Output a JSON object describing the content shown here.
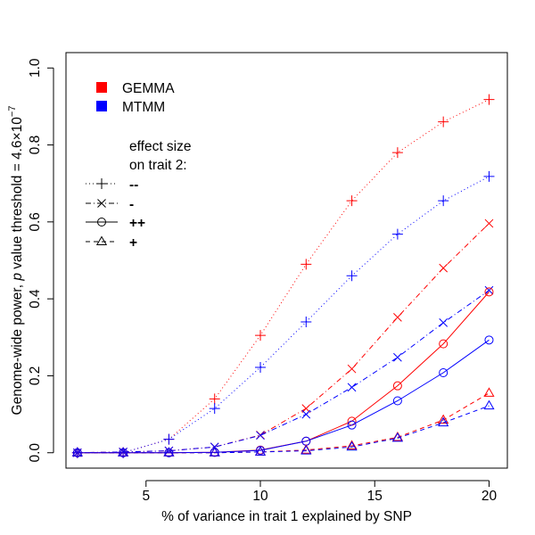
{
  "chart_data": {
    "type": "line",
    "xlabel": "% of variance in trait 1 explained by SNP",
    "ylabel_prefix": "Genome-wide power, ",
    "ylabel_p": "p",
    "ylabel_suffix": " value threshold = 4.6×10",
    "ylabel_exponent": "−7",
    "xlim": [
      1.5,
      20.8
    ],
    "ylim": [
      -0.04,
      1.04
    ],
    "xticks": [
      5,
      10,
      15,
      20
    ],
    "yticks": [
      0.0,
      0.2,
      0.4,
      0.6,
      0.8,
      1.0
    ],
    "ytick_labels": [
      "0.0",
      "0.2",
      "0.4",
      "0.6",
      "0.8",
      "1.0"
    ],
    "x": [
      2,
      4,
      6,
      8,
      10,
      12,
      14,
      16,
      18,
      20
    ],
    "method_legend": [
      {
        "name": "GEMMA",
        "color": "#ff0000"
      },
      {
        "name": "MTMM",
        "color": "#0000ff"
      }
    ],
    "effect_legend_title_1": "effect size",
    "effect_legend_title_2": "on trait 2:",
    "effect_legend": [
      {
        "label": "--",
        "marker": "plus",
        "dash": "1,3"
      },
      {
        "label": "-",
        "marker": "cross",
        "dash": "6,3,1,3"
      },
      {
        "label": "++",
        "marker": "circle",
        "dash": ""
      },
      {
        "label": "+",
        "marker": "triangle",
        "dash": "5,4"
      }
    ],
    "series": [
      {
        "method": "GEMMA",
        "effect": "--",
        "color": "#ff0000",
        "marker": "plus",
        "dash": "1,3",
        "values": [
          0.0,
          0.0,
          0.035,
          0.14,
          0.305,
          0.49,
          0.655,
          0.78,
          0.86,
          0.918
        ]
      },
      {
        "method": "MTMM",
        "effect": "--",
        "color": "#0000ff",
        "marker": "plus",
        "dash": "1,3",
        "values": [
          0.0,
          0.0,
          0.035,
          0.115,
          0.222,
          0.34,
          0.46,
          0.568,
          0.655,
          0.718
        ]
      },
      {
        "method": "GEMMA",
        "effect": "-",
        "color": "#ff0000",
        "marker": "cross",
        "dash": "6,3,1,3",
        "values": [
          0.0,
          0.002,
          0.005,
          0.015,
          0.046,
          0.115,
          0.218,
          0.352,
          0.48,
          0.596
        ]
      },
      {
        "method": "MTMM",
        "effect": "-",
        "color": "#0000ff",
        "marker": "cross",
        "dash": "6,3,1,3",
        "values": [
          0.0,
          0.002,
          0.005,
          0.015,
          0.045,
          0.1,
          0.17,
          0.248,
          0.338,
          0.422
        ]
      },
      {
        "method": "GEMMA",
        "effect": "++",
        "color": "#ff0000",
        "marker": "circle",
        "dash": "",
        "values": [
          0.0,
          0.0,
          0.0,
          0.001,
          0.007,
          0.03,
          0.082,
          0.174,
          0.283,
          0.418
        ]
      },
      {
        "method": "MTMM",
        "effect": "++",
        "color": "#0000ff",
        "marker": "circle",
        "dash": "",
        "values": [
          0.0,
          0.0,
          0.0,
          0.001,
          0.006,
          0.03,
          0.072,
          0.135,
          0.208,
          0.293
        ]
      },
      {
        "method": "GEMMA",
        "effect": "+",
        "color": "#ff0000",
        "marker": "triangle",
        "dash": "5,4",
        "values": [
          0.0,
          0.0,
          0.0,
          0.0,
          0.002,
          0.007,
          0.018,
          0.04,
          0.085,
          0.155
        ]
      },
      {
        "method": "MTMM",
        "effect": "+",
        "color": "#0000ff",
        "marker": "triangle",
        "dash": "5,4",
        "values": [
          0.0,
          0.0,
          0.0,
          0.0,
          0.002,
          0.005,
          0.015,
          0.038,
          0.078,
          0.122
        ]
      }
    ]
  }
}
